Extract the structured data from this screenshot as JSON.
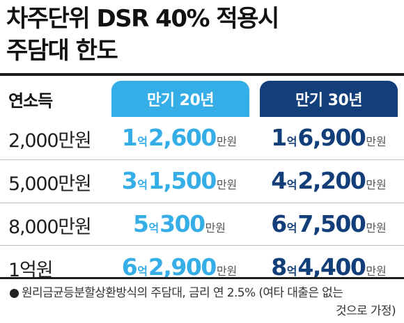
{
  "title": {
    "line1": "차주단위 DSR 40% 적용시",
    "line2": "주담대 한도"
  },
  "table": {
    "row_header_label": "연소득",
    "columns": [
      {
        "label": "만기 20년",
        "color": "#35aee7"
      },
      {
        "label": "만기 30년",
        "color": "#123f7a"
      }
    ],
    "amount_units": {
      "eok": "억",
      "won": "만원"
    },
    "rows": [
      {
        "income": "2,000만원",
        "v20": {
          "eok": "1",
          "man": "2,600"
        },
        "v30": {
          "eok": "1",
          "man": "6,900"
        }
      },
      {
        "income": "5,000만원",
        "v20": {
          "eok": "3",
          "man": "1,500"
        },
        "v30": {
          "eok": "4",
          "man": "2,200"
        }
      },
      {
        "income": "8,000만원",
        "v20": {
          "eok": "5",
          "man": "300"
        },
        "v30": {
          "eok": "6",
          "man": "7,500"
        }
      },
      {
        "income": "1억원",
        "v20": {
          "eok": "6",
          "man": "2,900"
        },
        "v30": {
          "eok": "8",
          "man": "4,400"
        }
      }
    ]
  },
  "footnote": {
    "line1": "원리금균등분할상환방식의 주담대, 금리 연 2.5% (여타 대출은 없는",
    "line2": "것으로 가정)"
  }
}
